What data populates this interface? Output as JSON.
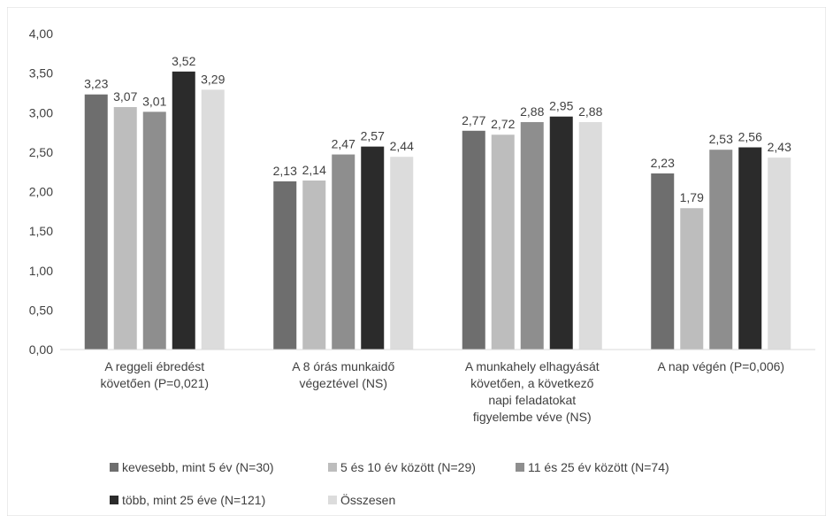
{
  "chart_data": {
    "type": "bar",
    "title": "",
    "xlabel": "",
    "ylabel": "",
    "ylim": [
      0,
      4
    ],
    "yticks": [
      "0,00",
      "0,50",
      "1,00",
      "1,50",
      "2,00",
      "2,50",
      "3,00",
      "3,50",
      "4,00"
    ],
    "grid": false,
    "legend_position": "bottom",
    "categories": [
      [
        "A reggeli ébredést",
        "követően (P=0,021)"
      ],
      [
        "A 8 órás munkaidő",
        "végeztével (NS)"
      ],
      [
        "A munkahely elhagyását",
        "követően, a következő",
        "napi feladatokat",
        "figyelembe véve (NS)"
      ],
      [
        "A nap végén (P=0,006)"
      ]
    ],
    "series": [
      {
        "name": "kevesebb, mint 5 év (N=30)",
        "color": "#6e6e6e",
        "values": [
          3.23,
          2.13,
          2.77,
          2.23
        ],
        "labels": [
          "3,23",
          "2,13",
          "2,77",
          "2,23"
        ]
      },
      {
        "name": "5 és 10 év között (N=29)",
        "color": "#bdbdbd",
        "values": [
          3.07,
          2.14,
          2.72,
          1.79
        ],
        "labels": [
          "3,07",
          "2,14",
          "2,72",
          "1,79"
        ]
      },
      {
        "name": "11 és 25 év között (N=74)",
        "color": "#8e8e8e",
        "values": [
          3.01,
          2.47,
          2.88,
          2.53
        ],
        "labels": [
          "3,01",
          "2,47",
          "2,88",
          "2,53"
        ]
      },
      {
        "name": "több, mint 25 éve (N=121)",
        "color": "#2b2b2b",
        "values": [
          3.52,
          2.57,
          2.95,
          2.56
        ],
        "labels": [
          "3,52",
          "2,57",
          "2,95",
          "2,56"
        ]
      },
      {
        "name": "Összesen",
        "color": "#dcdcdc",
        "values": [
          3.29,
          2.44,
          2.88,
          2.43
        ],
        "labels": [
          "3,29",
          "2,44",
          "2,88",
          "2,43"
        ]
      }
    ]
  }
}
